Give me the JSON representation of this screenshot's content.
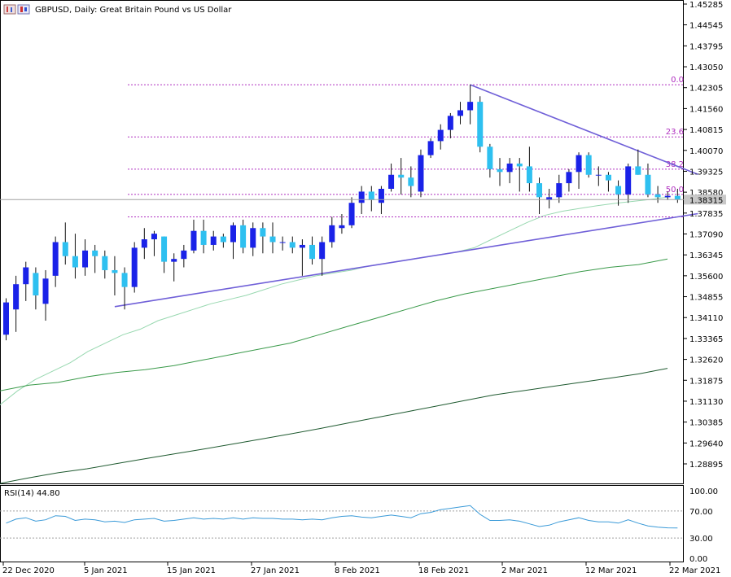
{
  "window": {
    "title": "GBPUSD, Daily:  Great Britain Pound vs US Dollar"
  },
  "colors": {
    "bull_candle": "#1a22e8",
    "bear_candle": "#2ec0f0",
    "wick": "#111111",
    "fib_line": "#b030c0",
    "trendline": "#7060d8",
    "ma_fast": "#98d8b0",
    "ma_mid": "#3a9a4a",
    "ma_slow": "#1f5a30",
    "rsi_line": "#3a9ad8",
    "current_price_bg": "#c8c8c8"
  },
  "price_axis": {
    "labels": [
      "1.45285",
      "1.44545",
      "1.43795",
      "1.43050",
      "1.42305",
      "1.41560",
      "1.40815",
      "1.40070",
      "1.39325",
      "1.38580",
      "1.37835",
      "1.37090",
      "1.36345",
      "1.35600",
      "1.34855",
      "1.34110",
      "1.33365",
      "1.32620",
      "1.31875",
      "1.31130",
      "1.30385",
      "1.29640",
      "1.28895"
    ],
    "current_price": "1.38315"
  },
  "time_axis": {
    "labels": [
      "22 Dec 2020",
      "5 Jan 2021",
      "15 Jan 2021",
      "27 Jan 2021",
      "8 Feb 2021",
      "18 Feb 2021",
      "2 Mar 2021",
      "12 Mar 2021",
      "22 Mar 2021"
    ]
  },
  "fib_levels": [
    {
      "label": "0.0",
      "price": 1.4241
    },
    {
      "label": "23.6",
      "price": 1.4055
    },
    {
      "label": "38.2",
      "price": 1.394
    },
    {
      "label": "50.0",
      "price": 1.385
    },
    {
      "label": "",
      "price": 1.377
    }
  ],
  "rsi_panel": {
    "label": "RSI(14) 44.80",
    "axis_labels": [
      "100.00",
      "70.00",
      "30.00",
      "0.00"
    ]
  },
  "chart_data": {
    "type": "candlestick",
    "title": "GBPUSD, Daily:  Great Britain Pound vs US Dollar",
    "ylim": [
      1.281,
      1.454
    ],
    "ohlc": [
      [
        1.335,
        1.348,
        1.333,
        1.3465
      ],
      [
        1.344,
        1.356,
        1.336,
        1.353
      ],
      [
        1.353,
        1.361,
        1.347,
        1.359
      ],
      [
        1.357,
        1.359,
        1.344,
        1.349
      ],
      [
        1.346,
        1.358,
        1.34,
        1.355
      ],
      [
        1.356,
        1.37,
        1.352,
        1.368
      ],
      [
        1.368,
        1.375,
        1.36,
        1.363
      ],
      [
        1.363,
        1.371,
        1.355,
        1.359
      ],
      [
        1.359,
        1.369,
        1.356,
        1.365
      ],
      [
        1.365,
        1.367,
        1.357,
        1.363
      ],
      [
        1.363,
        1.365,
        1.355,
        1.358
      ],
      [
        1.358,
        1.363,
        1.349,
        1.357
      ],
      [
        1.357,
        1.359,
        1.344,
        1.352
      ],
      [
        1.352,
        1.368,
        1.35,
        1.366
      ],
      [
        1.366,
        1.373,
        1.362,
        1.369
      ],
      [
        1.369,
        1.372,
        1.363,
        1.371
      ],
      [
        1.37,
        1.37,
        1.357,
        1.361
      ],
      [
        1.361,
        1.364,
        1.354,
        1.362
      ],
      [
        1.362,
        1.367,
        1.359,
        1.365
      ],
      [
        1.365,
        1.376,
        1.364,
        1.372
      ],
      [
        1.372,
        1.376,
        1.364,
        1.367
      ],
      [
        1.367,
        1.372,
        1.365,
        1.37
      ],
      [
        1.37,
        1.371,
        1.366,
        1.368
      ],
      [
        1.368,
        1.375,
        1.362,
        1.374
      ],
      [
        1.374,
        1.376,
        1.364,
        1.366
      ],
      [
        1.366,
        1.375,
        1.363,
        1.373
      ],
      [
        1.373,
        1.375,
        1.364,
        1.37
      ],
      [
        1.37,
        1.375,
        1.364,
        1.368
      ],
      [
        1.368,
        1.37,
        1.365,
        1.368
      ],
      [
        1.368,
        1.37,
        1.364,
        1.366
      ],
      [
        1.366,
        1.369,
        1.356,
        1.367
      ],
      [
        1.367,
        1.37,
        1.36,
        1.362
      ],
      [
        1.362,
        1.37,
        1.356,
        1.368
      ],
      [
        1.368,
        1.377,
        1.366,
        1.374
      ],
      [
        1.373,
        1.378,
        1.371,
        1.374
      ],
      [
        1.374,
        1.384,
        1.373,
        1.382
      ],
      [
        1.382,
        1.388,
        1.378,
        1.386
      ],
      [
        1.386,
        1.388,
        1.379,
        1.383
      ],
      [
        1.382,
        1.388,
        1.378,
        1.387
      ],
      [
        1.387,
        1.396,
        1.386,
        1.392
      ],
      [
        1.392,
        1.398,
        1.385,
        1.391
      ],
      [
        1.391,
        1.395,
        1.384,
        1.388
      ],
      [
        1.386,
        1.401,
        1.384,
        1.399
      ],
      [
        1.399,
        1.405,
        1.398,
        1.404
      ],
      [
        1.404,
        1.41,
        1.401,
        1.408
      ],
      [
        1.408,
        1.414,
        1.405,
        1.413
      ],
      [
        1.413,
        1.418,
        1.41,
        1.415
      ],
      [
        1.415,
        1.4241,
        1.41,
        1.418
      ],
      [
        1.418,
        1.42,
        1.4,
        1.402
      ],
      [
        1.402,
        1.403,
        1.391,
        1.394
      ],
      [
        1.394,
        1.398,
        1.388,
        1.393
      ],
      [
        1.393,
        1.398,
        1.389,
        1.396
      ],
      [
        1.396,
        1.398,
        1.386,
        1.395
      ],
      [
        1.395,
        1.402,
        1.386,
        1.389
      ],
      [
        1.389,
        1.391,
        1.378,
        1.384
      ],
      [
        1.383,
        1.387,
        1.38,
        1.384
      ],
      [
        1.384,
        1.392,
        1.382,
        1.389
      ],
      [
        1.389,
        1.394,
        1.386,
        1.393
      ],
      [
        1.393,
        1.4,
        1.387,
        1.399
      ],
      [
        1.399,
        1.4,
        1.391,
        1.392
      ],
      [
        1.392,
        1.395,
        1.388,
        1.392
      ],
      [
        1.392,
        1.393,
        1.386,
        1.39
      ],
      [
        1.388,
        1.39,
        1.381,
        1.385
      ],
      [
        1.385,
        1.396,
        1.382,
        1.395
      ],
      [
        1.395,
        1.401,
        1.392,
        1.392
      ],
      [
        1.392,
        1.396,
        1.384,
        1.385
      ],
      [
        1.385,
        1.388,
        1.382,
        1.384
      ],
      [
        1.384,
        1.386,
        1.383,
        1.3845
      ],
      [
        1.3845,
        1.387,
        1.382,
        1.3832
      ]
    ],
    "ma_fast": [
      1.31,
      1.315,
      1.319,
      1.322,
      1.325,
      1.329,
      1.332,
      1.335,
      1.337,
      1.34,
      1.342,
      1.344,
      1.346,
      1.3475,
      1.349,
      1.351,
      1.353,
      1.3545,
      1.356,
      1.357,
      1.358,
      1.3595,
      1.3605,
      1.3615,
      1.3625,
      1.3635,
      1.3645,
      1.366,
      1.369,
      1.372,
      1.375,
      1.3775,
      1.379,
      1.38,
      1.381,
      1.3818,
      1.3825,
      1.3832,
      1.384
    ],
    "ma_mid": [
      1.315,
      1.317,
      1.318,
      1.32,
      1.3215,
      1.3225,
      1.324,
      1.326,
      1.328,
      1.33,
      1.332,
      1.335,
      1.338,
      1.341,
      1.344,
      1.347,
      1.3495,
      1.3515,
      1.3535,
      1.3555,
      1.3575,
      1.359,
      1.36,
      1.362
    ],
    "ma_slow": [
      1.282,
      1.284,
      1.2858,
      1.2872,
      1.289,
      1.2908,
      1.2925,
      1.2942,
      1.296,
      1.2978,
      1.2996,
      1.3015,
      1.3035,
      1.3055,
      1.3075,
      1.3095,
      1.3115,
      1.3135,
      1.315,
      1.3165,
      1.318,
      1.3195,
      1.321,
      1.323
    ],
    "trendlines": [
      {
        "from": [
          11,
          1.345
        ],
        "to": [
          68,
          1.377
        ]
      },
      {
        "from": [
          47,
          1.4241
        ],
        "to": [
          68,
          1.395
        ]
      }
    ],
    "rsi": [
      52,
      58,
      60,
      55,
      57,
      63,
      62,
      56,
      58,
      57,
      54,
      55,
      53,
      57,
      58,
      59,
      55,
      56,
      58,
      60,
      58,
      59,
      58,
      60,
      58,
      60,
      59,
      59,
      58,
      58,
      57,
      58,
      57,
      60,
      62,
      63,
      61,
      60,
      62,
      64,
      62,
      60,
      66,
      68,
      72,
      74,
      76,
      78,
      65,
      56,
      56,
      57,
      55,
      51,
      47,
      49,
      54,
      57,
      60,
      56,
      54,
      54,
      52,
      57,
      52,
      48,
      46,
      45,
      44.8
    ],
    "rsi_levels": [
      70,
      30
    ],
    "rsi_ylim": [
      0,
      100
    ]
  }
}
